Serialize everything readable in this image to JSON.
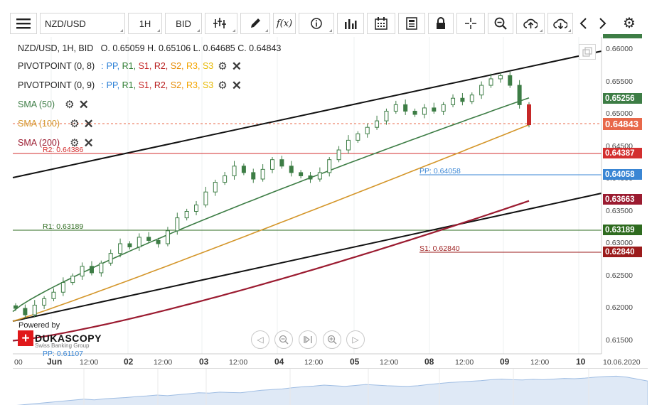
{
  "toolbar": {
    "symbol": "NZD/USD",
    "timeframe": "1H",
    "price_type": "BID",
    "function_label": "f(x)",
    "icons": [
      "menu-icon",
      "candlestick-icon",
      "pencil-icon",
      "function-icon",
      "info-icon",
      "bar-chart-icon",
      "calendar-icon",
      "news-icon",
      "lock-icon",
      "crosshair-icon",
      "zoom-icon",
      "upload-icon",
      "download-icon",
      "chevron-left-icon",
      "chevron-right-icon",
      "gear-icon"
    ]
  },
  "legend": {
    "ohlc": "NZD/USD, 1H, BID   O. 0.65059 H. 0.65106 L. 0.64685 C. 0.64843",
    "pivot1_name": "PIVOTPOINT (0, 8)",
    "pivot2_name": "PIVOTPOINT (0, 9)",
    "pivot_sep": ":",
    "pivot_levels": [
      "PP,",
      "R1,",
      "S1,",
      "R2,",
      "S2,",
      "R3,",
      "S3"
    ],
    "pivot_colors": [
      "#2a7fd6",
      "#2e7d32",
      "#c62828",
      "#b71c1c",
      "#e68a00",
      "#f3a400",
      "#e6b800"
    ],
    "sma50": "SMA (50)",
    "sma100": "SMA (100)",
    "sma200": "SMA (200)"
  },
  "colors": {
    "sma50": "#3d7d45",
    "sma100": "#d4962a",
    "sma200": "#9b1b30",
    "r2": "#d32f2f",
    "pp": "#3a86d4",
    "r1": "#2e6b1f",
    "s1": "#9b1b1b",
    "current": "#e8684a",
    "candle": "#3d7d45",
    "trend": "#111111"
  },
  "price_axis": {
    "ticks": [
      "0.66000",
      "0.65500",
      "0.65000",
      "0.64500",
      "0.64000",
      "0.63500",
      "0.63000",
      "0.62500",
      "0.62000",
      "0.61500"
    ],
    "boxes": {
      "top": "",
      "sma50": "0.65256",
      "current": "0.64843",
      "r2": "0.64387",
      "pp": "0.64058",
      "sma200": "0.63663",
      "r1": "0.63189",
      "s1": "0.62840"
    }
  },
  "time_axis": {
    "labels": [
      {
        "text": "00",
        "day": false
      },
      {
        "text": "Jun",
        "day": true
      },
      {
        "text": "12:00",
        "day": false
      },
      {
        "text": "02",
        "day": true
      },
      {
        "text": "12:00",
        "day": false
      },
      {
        "text": "03",
        "day": true
      },
      {
        "text": "12:00",
        "day": false
      },
      {
        "text": "04",
        "day": true
      },
      {
        "text": "12:00",
        "day": false
      },
      {
        "text": "05",
        "day": true
      },
      {
        "text": "12:00",
        "day": false
      },
      {
        "text": "08",
        "day": true
      },
      {
        "text": "12:00",
        "day": false
      },
      {
        "text": "09",
        "day": true
      },
      {
        "text": "12:00",
        "day": false
      },
      {
        "text": "10",
        "day": true
      },
      {
        "text": "10.06.2020",
        "day": false
      }
    ]
  },
  "levels": {
    "r2": "R2: 0.64386",
    "pp": "PP: 0.64058",
    "r1": "R1: 0.63189",
    "s1": "S1: 0.62840",
    "pp_lower": "PP: 0.61107"
  },
  "branding": {
    "powered": "Powered by",
    "name": "DUKASCOPY",
    "sub": "Swiss Banking Group"
  },
  "nav_icons": [
    "scroll-left-icon",
    "zoom-out-icon",
    "reset-icon",
    "zoom-in-icon",
    "scroll-right-icon"
  ],
  "chart_data": {
    "type": "line",
    "title": "NZD/USD, 1H, BID",
    "ylim": [
      0.6125,
      0.6615
    ],
    "candles_close_approx": [
      0.62,
      0.619,
      0.6205,
      0.6215,
      0.6225,
      0.624,
      0.625,
      0.6265,
      0.6255,
      0.627,
      0.6285,
      0.63,
      0.6295,
      0.631,
      0.6305,
      0.63,
      0.632,
      0.634,
      0.635,
      0.636,
      0.638,
      0.6395,
      0.6405,
      0.642,
      0.641,
      0.64,
      0.6415,
      0.643,
      0.642,
      0.641,
      0.6405,
      0.64,
      0.641,
      0.643,
      0.6445,
      0.646,
      0.647,
      0.648,
      0.649,
      0.6505,
      0.6515,
      0.6505,
      0.65,
      0.651,
      0.6505,
      0.6515,
      0.6525,
      0.652,
      0.653,
      0.6545,
      0.6555,
      0.656,
      0.6545,
      0.6515,
      0.6484
    ],
    "series": [
      {
        "name": "SMA (50)",
        "start": 0.6195,
        "end": 0.65256
      },
      {
        "name": "SMA (100)",
        "start": 0.618,
        "end": 0.6484
      },
      {
        "name": "SMA (200)",
        "start": 0.615,
        "end": 0.63663
      }
    ]
  }
}
